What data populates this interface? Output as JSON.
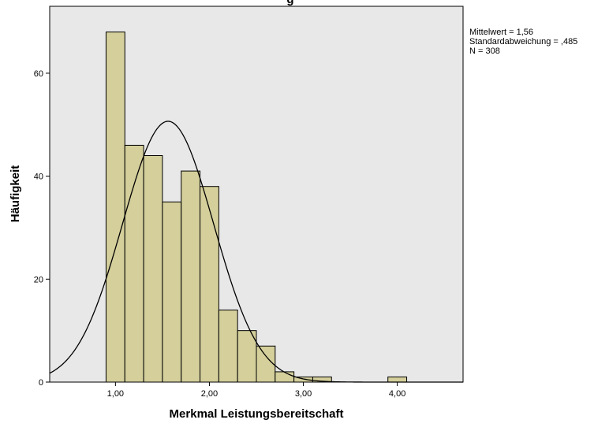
{
  "chart_data": {
    "type": "bar",
    "title": "g",
    "xlabel": "Merkmal Leistungsbereitschaft",
    "ylabel": "Häufigkeit",
    "xlim": [
      0.3,
      4.7
    ],
    "ylim": [
      0,
      73
    ],
    "x_ticks": [
      1,
      2,
      3,
      4
    ],
    "x_tick_labels": [
      "1,00",
      "2,00",
      "3,00",
      "4,00"
    ],
    "y_ticks": [
      0,
      20,
      40,
      60
    ],
    "y_tick_labels": [
      "0",
      "20",
      "40",
      "60"
    ],
    "bin_width": 0.2,
    "bins": [
      {
        "start": 0.9,
        "count": 68
      },
      {
        "start": 1.1,
        "count": 46
      },
      {
        "start": 1.3,
        "count": 44
      },
      {
        "start": 1.5,
        "count": 35
      },
      {
        "start": 1.7,
        "count": 41
      },
      {
        "start": 1.9,
        "count": 38
      },
      {
        "start": 2.1,
        "count": 14
      },
      {
        "start": 2.3,
        "count": 10
      },
      {
        "start": 2.5,
        "count": 7
      },
      {
        "start": 2.7,
        "count": 2
      },
      {
        "start": 2.9,
        "count": 1
      },
      {
        "start": 3.1,
        "count": 1
      },
      {
        "start": 3.9,
        "count": 1
      }
    ],
    "normal_curve": {
      "mean": 1.56,
      "sd": 0.485,
      "n": 308
    },
    "stats": [
      "Mittelwert = 1,56",
      "Standardabweichung = ,485",
      "N = 308"
    ],
    "grid": false,
    "colors": {
      "plot_background": "#e8e8e8",
      "bar_fill": "#d4cf9b",
      "bar_stroke": "#000000",
      "curve": "#000000",
      "axis": "#000000"
    }
  }
}
